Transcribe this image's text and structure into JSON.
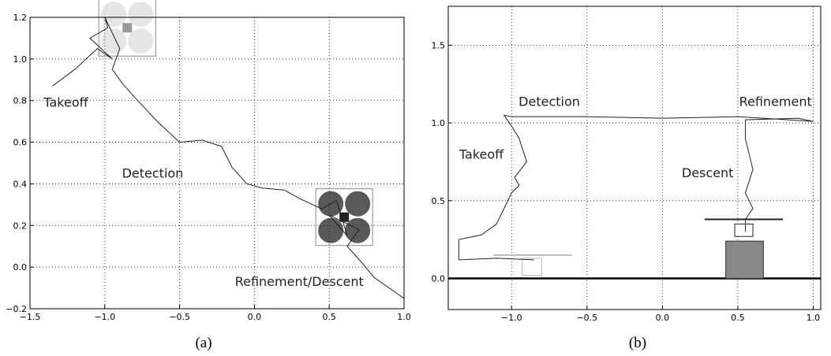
{
  "chart_data": [
    {
      "type": "line",
      "caption": "(a)",
      "xlim": [
        -1.5,
        1.0
      ],
      "ylim": [
        -0.2,
        1.2
      ],
      "xticks": [
        {
          "value": -1.5,
          "label": "−1.5"
        },
        {
          "value": -1.0,
          "label": "−1.0"
        },
        {
          "value": -0.5,
          "label": "−0.5"
        },
        {
          "value": 0.0,
          "label": "0.0"
        },
        {
          "value": 0.5,
          "label": "0.5"
        },
        {
          "value": 1.0,
          "label": "1.0"
        }
      ],
      "yticks": [
        {
          "value": -0.2,
          "label": "−0.2"
        },
        {
          "value": 0.0,
          "label": "0.0"
        },
        0.2,
        0.4,
        0.6,
        0.8,
        {
          "value": 1.0,
          "label": "1.0"
        },
        1.2
      ],
      "grid": true,
      "zero_line": false,
      "series": [
        {
          "color": "#222222",
          "x": [
            -1.35,
            -1.2,
            -1.05,
            -0.95,
            -1.1,
            -0.98,
            -1.0,
            -0.9,
            -0.95,
            -0.88,
            -0.78,
            -0.65,
            -0.5,
            -0.35,
            -0.22,
            -0.15,
            -0.05,
            0.05,
            0.2,
            0.3,
            0.45,
            0.55,
            0.62,
            0.5,
            0.7,
            0.62,
            0.72,
            0.8,
            0.9,
            1.0
          ],
          "values": [
            0.87,
            0.95,
            1.05,
            1.0,
            1.1,
            1.15,
            1.2,
            1.05,
            0.95,
            0.88,
            0.8,
            0.7,
            0.6,
            0.61,
            0.58,
            0.48,
            0.4,
            0.38,
            0.37,
            0.33,
            0.28,
            0.32,
            0.15,
            0.25,
            0.18,
            0.1,
            0.02,
            -0.05,
            -0.1,
            -0.15
          ]
        }
      ],
      "annotations": [
        {
          "text": "Takeoff",
          "x": -1.26,
          "y": 0.77
        },
        {
          "text": "Detection",
          "x": -0.68,
          "y": 0.43
        },
        {
          "text": "Refinement/Descent",
          "x": 0.3,
          "y": -0.09
        }
      ]
    },
    {
      "type": "line",
      "caption": "(b)",
      "xlim": [
        -1.42,
        1.05
      ],
      "ylim": [
        -0.2,
        1.75
      ],
      "xticks": [
        {
          "value": -1.0,
          "label": "−1.0"
        },
        {
          "value": -0.5,
          "label": "−0.5"
        },
        {
          "value": 0.0,
          "label": "0.0"
        },
        0.5,
        {
          "value": 1.0,
          "label": "1.0"
        }
      ],
      "yticks": [
        {
          "value": 0.0,
          "label": "0.0"
        },
        0.5,
        {
          "value": 1.0,
          "label": "1.0"
        },
        1.5
      ],
      "grid": true,
      "zero_line": true,
      "series": [
        {
          "color": "#222222",
          "x": [
            -0.85,
            -1.1,
            -1.35,
            -1.35,
            -1.2,
            -1.1,
            -1.05,
            -1.0,
            -0.95,
            -0.98,
            -0.9,
            -0.95,
            -1.0,
            -1.05,
            -1.0,
            -0.5,
            0.0,
            0.5,
            1.0,
            0.9,
            0.55,
            0.55,
            0.6,
            0.55,
            0.6,
            0.55,
            0.55
          ],
          "values": [
            0.12,
            0.13,
            0.12,
            0.25,
            0.28,
            0.35,
            0.45,
            0.55,
            0.6,
            0.65,
            0.75,
            0.9,
            0.98,
            1.05,
            1.04,
            1.04,
            1.03,
            1.04,
            1.01,
            1.03,
            1.02,
            0.9,
            0.7,
            0.55,
            0.45,
            0.38,
            0.3
          ]
        }
      ],
      "annotations": [
        {
          "text": "Detection",
          "x": -0.75,
          "y": 1.11
        },
        {
          "text": "Refinement",
          "x": 0.75,
          "y": 1.11
        },
        {
          "text": "Takeoff",
          "x": -1.2,
          "y": 0.77
        },
        {
          "text": "Descent",
          "x": 0.3,
          "y": 0.65
        }
      ]
    }
  ]
}
